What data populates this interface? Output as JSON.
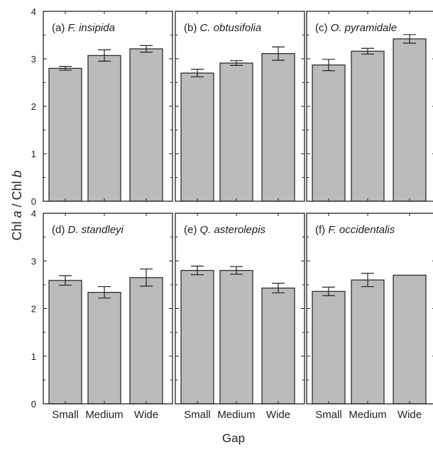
{
  "figure": {
    "ylabel_parts": [
      "Chl ",
      "a",
      " / Chl ",
      "b"
    ],
    "xlabel": "Gap",
    "y_ticks": [
      "0",
      "1",
      "2",
      "3",
      "4"
    ]
  },
  "chart_data": [
    {
      "type": "bar",
      "panel_letter": "(a)",
      "species": "F. insipida",
      "categories": [
        "Small",
        "Medium",
        "Wide"
      ],
      "values": [
        2.8,
        3.07,
        3.21
      ],
      "errors": [
        0.04,
        0.12,
        0.07
      ],
      "ylim": [
        0,
        4
      ],
      "bar_color": "#bbbbbb"
    },
    {
      "type": "bar",
      "panel_letter": "(b)",
      "species": "C. obtusifolia",
      "categories": [
        "Small",
        "Medium",
        "Wide"
      ],
      "values": [
        2.7,
        2.91,
        3.11
      ],
      "errors": [
        0.08,
        0.05,
        0.14
      ],
      "ylim": [
        0,
        4
      ],
      "bar_color": "#bbbbbb"
    },
    {
      "type": "bar",
      "panel_letter": "(c)",
      "species": "O. pyramidale",
      "categories": [
        "Small",
        "Medium",
        "Wide"
      ],
      "values": [
        2.87,
        3.16,
        3.42
      ],
      "errors": [
        0.12,
        0.06,
        0.09
      ],
      "ylim": [
        0,
        4
      ],
      "bar_color": "#bbbbbb"
    },
    {
      "type": "bar",
      "panel_letter": "(d)",
      "species": "D. standleyi",
      "categories": [
        "Small",
        "Medium",
        "Wide"
      ],
      "values": [
        2.59,
        2.34,
        2.65
      ],
      "errors": [
        0.1,
        0.12,
        0.18
      ],
      "ylim": [
        0,
        4
      ],
      "bar_color": "#bbbbbb"
    },
    {
      "type": "bar",
      "panel_letter": "(e)",
      "species": "Q. asterolepis",
      "categories": [
        "Small",
        "Medium",
        "Wide"
      ],
      "values": [
        2.8,
        2.8,
        2.43
      ],
      "errors": [
        0.09,
        0.08,
        0.1
      ],
      "ylim": [
        0,
        4
      ],
      "bar_color": "#bbbbbb"
    },
    {
      "type": "bar",
      "panel_letter": "(f)",
      "species": "F. occidentalis",
      "categories": [
        "Small",
        "Medium",
        "Wide"
      ],
      "values": [
        2.36,
        2.6,
        2.7
      ],
      "errors": [
        0.09,
        0.14,
        null
      ],
      "ylim": [
        0,
        4
      ],
      "bar_color": "#bbbbbb"
    }
  ]
}
